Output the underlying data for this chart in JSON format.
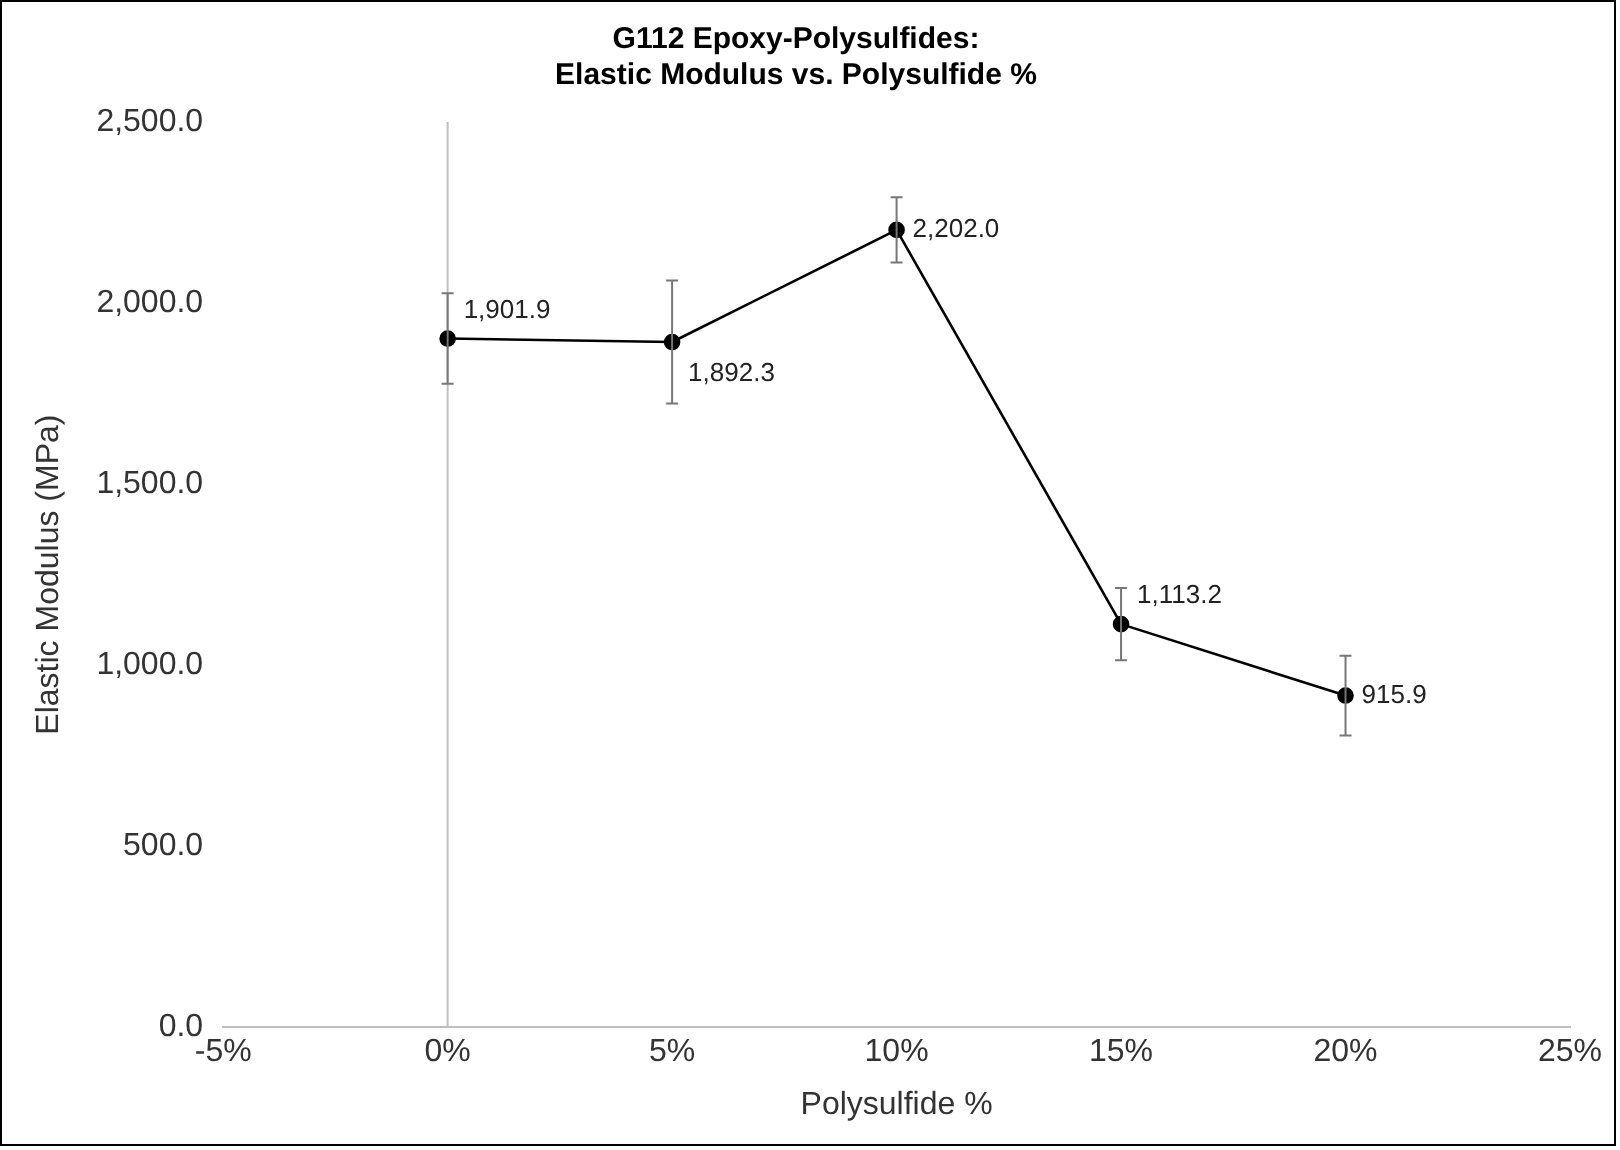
{
  "chart_data": {
    "type": "line",
    "title": "G112 Epoxy-Polysulfides:\nElastic Modulus vs. Polysulfide %",
    "xlabel": "Polysulfide %",
    "ylabel": "Elastic Modulus (MPa)",
    "x": [
      0,
      5,
      10,
      15,
      20
    ],
    "series": [
      {
        "color": "#000000",
        "values": [
          1901.9,
          1892.3,
          2202.0,
          1113.2,
          915.9
        ],
        "errors": [
          125,
          170,
          90,
          100,
          110
        ]
      }
    ],
    "value_labels": [
      "1,901.9",
      "1,892.3",
      "2,202.0",
      "1,113.2",
      "915.9"
    ],
    "xlim": [
      -5,
      25
    ],
    "xticks": [
      {
        "value": -5,
        "label": "-5%"
      },
      {
        "value": 0,
        "label": "0%"
      },
      {
        "value": 5,
        "label": "5%"
      },
      {
        "value": 10,
        "label": "10%"
      },
      {
        "value": 15,
        "label": "15%"
      },
      {
        "value": 20,
        "label": "20%"
      },
      {
        "value": 25,
        "label": "25%"
      }
    ],
    "ylim": [
      0,
      2500
    ],
    "yticks": [
      {
        "value": 0,
        "label": "0.0"
      },
      {
        "value": 500,
        "label": "500.0"
      },
      {
        "value": 1000,
        "label": "1,000.0"
      },
      {
        "value": 1500,
        "label": "1,500.0"
      },
      {
        "value": 2000,
        "label": "2,000.0"
      },
      {
        "value": 2500,
        "label": "2,500.0"
      }
    ],
    "ref_lines": [
      {
        "axis": "x",
        "value": 0,
        "color": "#bfbfbf"
      }
    ],
    "grid": false,
    "legend": false,
    "marker": "circle",
    "line_style": "solid"
  }
}
